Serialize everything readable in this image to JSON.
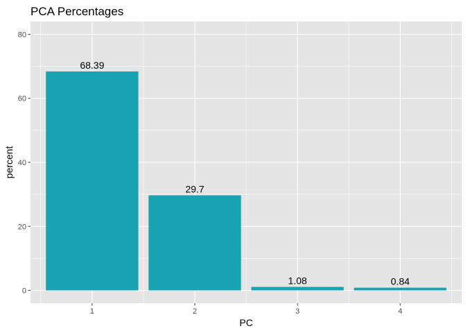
{
  "chart_data": {
    "type": "bar",
    "title": "PCA Percentages",
    "xlabel": "PC",
    "ylabel": "percent",
    "categories": [
      "1",
      "2",
      "3",
      "4"
    ],
    "values": [
      68.39,
      29.7,
      1.08,
      0.84
    ],
    "value_labels": [
      "68.39",
      "29.7",
      "1.08",
      "0.84"
    ],
    "ylim": [
      0,
      80
    ],
    "y_ticks": [
      "0",
      "20",
      "40",
      "60",
      "80"
    ],
    "y_tick_values": [
      0,
      20,
      40,
      60,
      80
    ],
    "grid": true,
    "legend": "none",
    "colors": {
      "bar": "#17A3B1",
      "panel": "#E5E5E5",
      "grid_major": "#FFFFFF",
      "tick_text": "#4D4D4D",
      "tick_mark": "#333333"
    }
  }
}
